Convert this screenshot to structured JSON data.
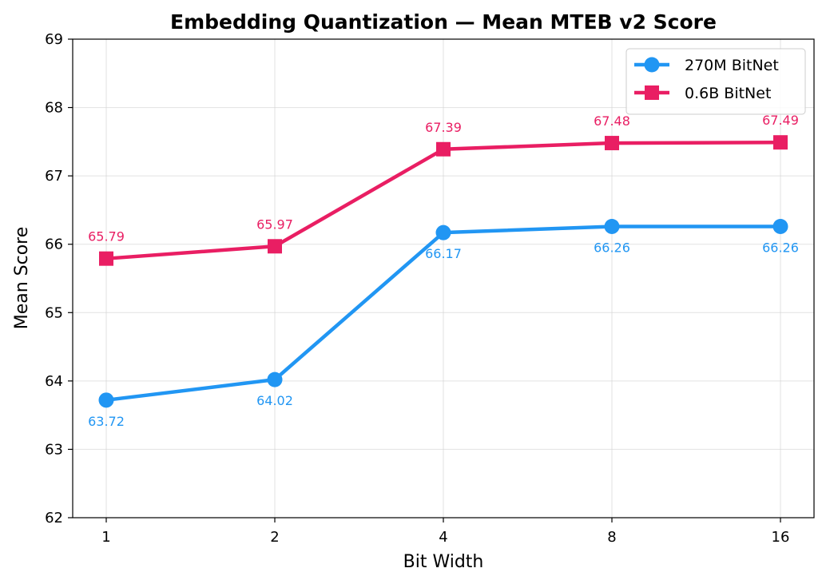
{
  "chart_data": {
    "type": "line",
    "title": "Embedding Quantization — Mean MTEB v2 Score",
    "xlabel": "Bit Width",
    "ylabel": "Mean Score",
    "categories": [
      "1",
      "2",
      "4",
      "8",
      "16"
    ],
    "ylim": [
      62,
      69
    ],
    "yticks": [
      62,
      63,
      64,
      65,
      66,
      67,
      68,
      69
    ],
    "grid": true,
    "legend_position": "top-right",
    "series": [
      {
        "name": "270M BitNet",
        "color": "#2196F3",
        "marker": "circle",
        "label_position": "below",
        "values": [
          63.72,
          64.02,
          66.17,
          66.26,
          66.26
        ],
        "labels": [
          "63.72",
          "64.02",
          "66.17",
          "66.26",
          "66.26"
        ]
      },
      {
        "name": "0.6B BitNet",
        "color": "#E91E63",
        "marker": "square",
        "label_position": "above",
        "values": [
          65.79,
          65.97,
          67.39,
          67.48,
          67.49
        ],
        "labels": [
          "65.79",
          "65.97",
          "67.39",
          "67.48",
          "67.49"
        ]
      }
    ]
  }
}
